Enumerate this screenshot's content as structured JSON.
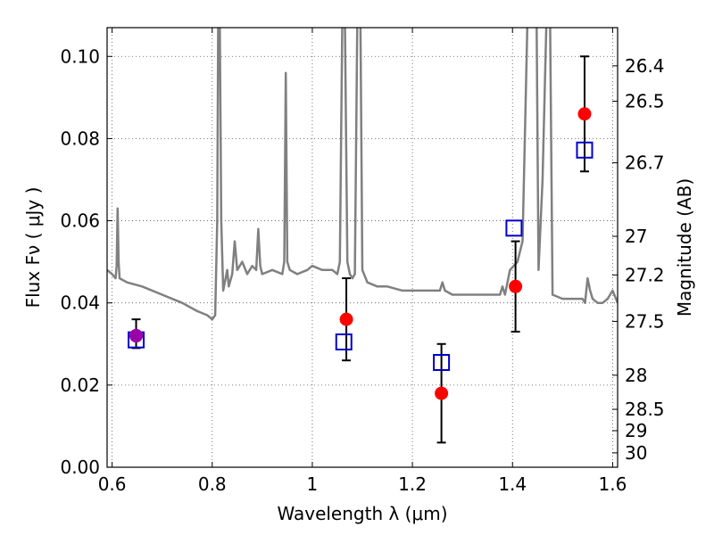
{
  "chart_data": {
    "type": "scatter",
    "title": "",
    "xlabel": "Wavelength  λ (μm)",
    "ylabel": "Flux  Fν  ( μJy )",
    "ylabel_right": "Magnitude (AB)",
    "xlim": [
      0.59,
      1.61
    ],
    "ylim": [
      0.0,
      0.107
    ],
    "grid": true,
    "x_ticks": [
      0.6,
      0.8,
      1.0,
      1.2,
      1.4,
      1.6
    ],
    "x_tick_labels": [
      "0.6",
      "0.8",
      "1",
      "1.2",
      "1.4",
      "1.6"
    ],
    "y_ticks": [
      0.0,
      0.02,
      0.04,
      0.06,
      0.08,
      0.1
    ],
    "y_tick_labels": [
      "0.00",
      "0.02",
      "0.04",
      "0.06",
      "0.08",
      "0.10"
    ],
    "right_ticks": [
      {
        "label": "26.4",
        "flux": 0.0977
      },
      {
        "label": "26.5",
        "flux": 0.0891
      },
      {
        "label": "26.7",
        "flux": 0.0741
      },
      {
        "label": "27",
        "flux": 0.0562
      },
      {
        "label": "27.2",
        "flux": 0.0468
      },
      {
        "label": "27.5",
        "flux": 0.0355
      },
      {
        "label": "28",
        "flux": 0.0224
      },
      {
        "label": "28.5",
        "flux": 0.0141
      },
      {
        "label": "29",
        "flux": 0.0089
      },
      {
        "label": "30",
        "flux": 0.0035
      }
    ],
    "series": [
      {
        "kind": "spectrum",
        "color": "#808080",
        "points": [
          [
            0.59,
            0.048
          ],
          [
            0.6,
            0.047
          ],
          [
            0.607,
            0.046
          ],
          [
            0.609,
            0.049
          ],
          [
            0.611,
            0.063
          ],
          [
            0.613,
            0.05
          ],
          [
            0.615,
            0.046
          ],
          [
            0.63,
            0.045
          ],
          [
            0.66,
            0.044
          ],
          [
            0.7,
            0.042
          ],
          [
            0.74,
            0.04
          ],
          [
            0.77,
            0.038
          ],
          [
            0.79,
            0.037
          ],
          [
            0.8,
            0.036
          ],
          [
            0.806,
            0.037
          ],
          [
            0.81,
            0.06
          ],
          [
            0.812,
            0.11
          ],
          [
            0.815,
            0.11
          ],
          [
            0.818,
            0.06
          ],
          [
            0.822,
            0.043
          ],
          [
            0.83,
            0.048
          ],
          [
            0.833,
            0.044
          ],
          [
            0.84,
            0.047
          ],
          [
            0.845,
            0.055
          ],
          [
            0.85,
            0.048
          ],
          [
            0.86,
            0.05
          ],
          [
            0.87,
            0.047
          ],
          [
            0.88,
            0.049
          ],
          [
            0.888,
            0.048
          ],
          [
            0.892,
            0.058
          ],
          [
            0.896,
            0.049
          ],
          [
            0.9,
            0.047
          ],
          [
            0.92,
            0.048
          ],
          [
            0.94,
            0.047
          ],
          [
            0.944,
            0.05
          ],
          [
            0.947,
            0.096
          ],
          [
            0.95,
            0.05
          ],
          [
            0.955,
            0.048
          ],
          [
            0.97,
            0.047
          ],
          [
            0.99,
            0.048
          ],
          [
            1.0,
            0.049
          ],
          [
            1.02,
            0.048
          ],
          [
            1.04,
            0.048
          ],
          [
            1.05,
            0.047
          ],
          [
            1.055,
            0.05
          ],
          [
            1.06,
            0.11
          ],
          [
            1.065,
            0.11
          ],
          [
            1.07,
            0.05
          ],
          [
            1.075,
            0.047
          ],
          [
            1.08,
            0.046
          ],
          [
            1.085,
            0.047
          ],
          [
            1.09,
            0.11
          ],
          [
            1.096,
            0.11
          ],
          [
            1.1,
            0.048
          ],
          [
            1.11,
            0.045
          ],
          [
            1.13,
            0.044
          ],
          [
            1.15,
            0.044
          ],
          [
            1.18,
            0.043
          ],
          [
            1.2,
            0.043
          ],
          [
            1.24,
            0.043
          ],
          [
            1.255,
            0.043
          ],
          [
            1.26,
            0.045
          ],
          [
            1.265,
            0.043
          ],
          [
            1.28,
            0.042
          ],
          [
            1.3,
            0.042
          ],
          [
            1.33,
            0.042
          ],
          [
            1.36,
            0.042
          ],
          [
            1.375,
            0.042
          ],
          [
            1.38,
            0.044
          ],
          [
            1.385,
            0.042
          ],
          [
            1.395,
            0.048
          ],
          [
            1.41,
            0.05
          ],
          [
            1.42,
            0.055
          ],
          [
            1.43,
            0.11
          ],
          [
            1.44,
            0.11
          ],
          [
            1.448,
            0.11
          ],
          [
            1.452,
            0.048
          ],
          [
            1.46,
            0.07
          ],
          [
            1.468,
            0.11
          ],
          [
            1.475,
            0.11
          ],
          [
            1.48,
            0.042
          ],
          [
            1.5,
            0.041
          ],
          [
            1.52,
            0.041
          ],
          [
            1.54,
            0.041
          ],
          [
            1.545,
            0.04
          ],
          [
            1.55,
            0.046
          ],
          [
            1.555,
            0.043
          ],
          [
            1.56,
            0.041
          ],
          [
            1.57,
            0.04
          ],
          [
            1.58,
            0.04
          ],
          [
            1.59,
            0.041
          ],
          [
            1.6,
            0.043
          ],
          [
            1.61,
            0.04
          ]
        ]
      },
      {
        "kind": "observed",
        "color": "#ff0000",
        "marker": "circle",
        "points": [
          {
            "x": 0.648,
            "y": 0.032,
            "yerr_low": 0.029,
            "yerr_high": 0.036
          },
          {
            "x": 1.068,
            "y": 0.036,
            "yerr_low": 0.026,
            "yerr_high": 0.046
          },
          {
            "x": 1.258,
            "y": 0.018,
            "yerr_low": 0.006,
            "yerr_high": 0.03
          },
          {
            "x": 1.406,
            "y": 0.044,
            "yerr_low": 0.033,
            "yerr_high": 0.055
          },
          {
            "x": 1.544,
            "y": 0.086,
            "yerr_low": 0.072,
            "yerr_high": 0.1
          }
        ]
      },
      {
        "kind": "model",
        "color": "#0000cc",
        "marker": "square",
        "points": [
          {
            "x": 0.648,
            "y": 0.031
          },
          {
            "x": 1.063,
            "y": 0.0305
          },
          {
            "x": 1.258,
            "y": 0.0255
          },
          {
            "x": 1.403,
            "y": 0.0582
          },
          {
            "x": 1.544,
            "y": 0.0772
          }
        ]
      },
      {
        "kind": "highlight",
        "color": "#9900aa",
        "marker": "circle",
        "points": [
          {
            "x": 0.648,
            "y": 0.032
          }
        ]
      }
    ]
  }
}
